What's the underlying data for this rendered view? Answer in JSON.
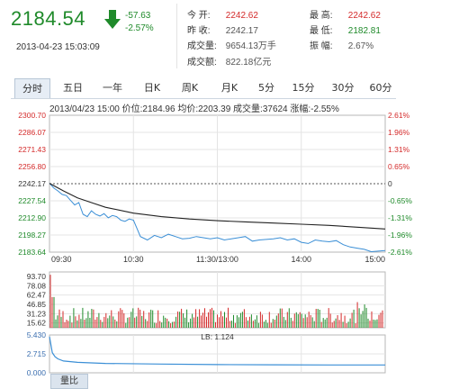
{
  "quote": {
    "price": "2184.54",
    "change": "-57.63",
    "change_pct": "-2.57%",
    "datetime": "2013-04-23  15:03:09",
    "trend_color": "#1f8a2a"
  },
  "stats": {
    "open_label": "今    开:",
    "open_value": "2242.62",
    "prev_close_label": "昨    收:",
    "prev_close_value": "2242.17",
    "volume_label": "成交量:",
    "volume_value": "9654.13万手",
    "amount_label": "成交额:",
    "amount_value": "822.18亿元",
    "high_label": "最    高:",
    "high_value": "2242.62",
    "low_label": "最    低:",
    "low_value": "2182.81",
    "amplitude_label": "振    幅:",
    "amplitude_value": "2.67%"
  },
  "tabs": [
    {
      "label": "分时",
      "active": true
    },
    {
      "label": "五日",
      "active": false
    },
    {
      "label": "一年",
      "active": false
    },
    {
      "label": "日K",
      "active": false
    },
    {
      "label": "周K",
      "active": false
    },
    {
      "label": "月K",
      "active": false
    },
    {
      "label": "5分",
      "active": false
    },
    {
      "label": "15分",
      "active": false
    },
    {
      "label": "30分",
      "active": false
    },
    {
      "label": "60分",
      "active": false
    }
  ],
  "infoline": "2013/04/23 15:00  价位:2184.96  均价:2203.39  成交量:37624  涨幅:-2.55%",
  "volume_tab": "量比",
  "colors": {
    "up": "#d42a2a",
    "down": "#1f8a2a",
    "price_line": "#3b8fd6",
    "avg_line": "#222222",
    "grid": "#e4e4e4",
    "frame": "#b7b7b7",
    "accent_tab": "#e6edf5"
  },
  "chart_data": [
    {
      "type": "line",
      "name": "intraday-price",
      "x_ticks": [
        "09:30",
        "10:30",
        "11:30/13:00",
        "14:00",
        "15:00"
      ],
      "y_left_ticks": [
        "2300.70",
        "2286.07",
        "2271.43",
        "2256.80",
        "2242.17",
        "2227.54",
        "2212.90",
        "2198.27",
        "2183.64"
      ],
      "y_right_ticks": [
        "2.61%",
        "1.96%",
        "1.31%",
        "0.65%",
        "0",
        "-0.65%",
        "-1.31%",
        "-1.96%",
        "-2.61%"
      ],
      "ylim": [
        2183.64,
        2300.7
      ],
      "baseline": 2242.17,
      "series": [
        {
          "name": "价位",
          "color": "#3b8fd6",
          "x": [
            0,
            3,
            6,
            9,
            12,
            15,
            18,
            21,
            24,
            27,
            30,
            33,
            36,
            39,
            42,
            45,
            48,
            51,
            54,
            57,
            60,
            65,
            70,
            75,
            80,
            85,
            90,
            95,
            100,
            105,
            110,
            115,
            120,
            125,
            130,
            135,
            140,
            145,
            150,
            155,
            160,
            165,
            170,
            175,
            180,
            185,
            190,
            195,
            200,
            205,
            210,
            215,
            220,
            225,
            230,
            235,
            240
          ],
          "values": [
            2242.6,
            2238.5,
            2236.0,
            2233.0,
            2232.0,
            2228.0,
            2224.0,
            2226.0,
            2216.0,
            2214.0,
            2219.0,
            2216.0,
            2214.5,
            2216.5,
            2213.0,
            2215.0,
            2214.0,
            2211.0,
            2210.0,
            2212.0,
            2211.0,
            2197.0,
            2194.0,
            2198.0,
            2196.0,
            2199.0,
            2197.0,
            2195.0,
            2195.5,
            2197.0,
            2196.0,
            2195.0,
            2196.0,
            2194.0,
            2195.0,
            2196.0,
            2197.0,
            2193.0,
            2194.0,
            2194.5,
            2195.0,
            2196.0,
            2194.0,
            2195.0,
            2192.0,
            2191.0,
            2194.0,
            2193.0,
            2192.5,
            2193.5,
            2190.0,
            2188.0,
            2187.0,
            2186.0,
            2184.0,
            2184.5,
            2185.0
          ]
        },
        {
          "name": "均价",
          "color": "#222222",
          "x": [
            0,
            10,
            20,
            30,
            40,
            60,
            80,
            100,
            120,
            140,
            160,
            180,
            200,
            220,
            240
          ],
          "values": [
            2242.5,
            2236.0,
            2230.0,
            2226.0,
            2222.0,
            2217.0,
            2214.0,
            2212.0,
            2210.5,
            2209.5,
            2208.5,
            2207.5,
            2206.5,
            2205.0,
            2203.4
          ]
        }
      ]
    },
    {
      "type": "bar",
      "name": "volume",
      "y_ticks": [
        "93.70",
        "78.08",
        "62.47",
        "46.85",
        "31.23",
        "15.62"
      ],
      "ylim": [
        0,
        93.7
      ],
      "note_colors": "red up bars, green down bars"
    },
    {
      "type": "line",
      "name": "LB",
      "label_text": "LB: 1.124",
      "y_ticks": [
        "5.430",
        "2.715",
        "0.000"
      ],
      "ylim": [
        0,
        5.43
      ],
      "series": [
        {
          "name": "LB",
          "color": "#3b8fd6",
          "x": [
            0,
            2,
            4,
            6,
            10,
            20,
            40,
            80,
            120,
            160,
            200,
            240
          ],
          "values": [
            5.2,
            2.9,
            2.3,
            2.0,
            1.7,
            1.5,
            1.35,
            1.25,
            1.18,
            1.15,
            1.13,
            1.124
          ]
        }
      ]
    }
  ]
}
